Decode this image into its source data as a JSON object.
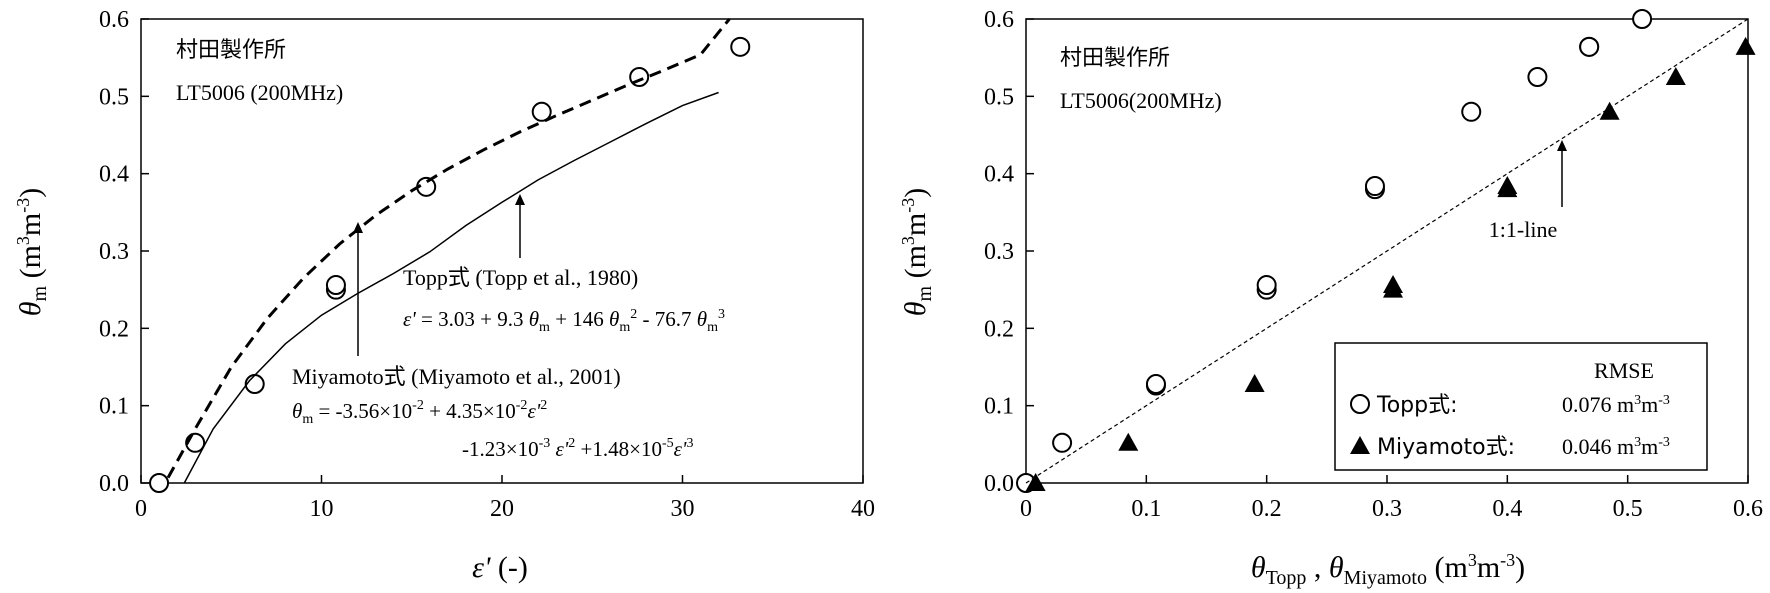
{
  "chart_data": [
    {
      "type": "scatter",
      "xlabel": "ε' (-)",
      "ylabel": "θm (m3m-3)",
      "xlim": [
        0,
        40
      ],
      "ylim": [
        0,
        0.6
      ],
      "xticks": [
        "0",
        "10",
        "20",
        "30",
        "40"
      ],
      "yticks": [
        "0.0",
        "0.1",
        "0.2",
        "0.3",
        "0.4",
        "0.5",
        "0.6"
      ],
      "series": [
        {
          "style": "open-circle",
          "x": [
            1.0,
            3.0,
            6.3,
            10.8,
            10.8,
            15.8,
            22.2,
            27.6,
            33.2
          ],
          "y": [
            0.0,
            0.052,
            0.128,
            0.25,
            0.256,
            0.383,
            0.48,
            0.525,
            0.564
          ]
        },
        {
          "name": "Topp式",
          "style": "solid-line",
          "x": [
            2.4,
            4,
            6,
            8,
            10,
            12,
            14,
            16,
            18,
            20,
            22,
            24,
            26,
            28,
            30,
            32
          ],
          "y": [
            0.0,
            0.07,
            0.132,
            0.18,
            0.217,
            0.245,
            0.271,
            0.299,
            0.333,
            0.363,
            0.392,
            0.417,
            0.441,
            0.465,
            0.488,
            0.505
          ]
        },
        {
          "name": "Miyamoto式",
          "style": "dashed-line",
          "x": [
            1.5,
            3,
            5,
            7,
            9,
            11,
            13,
            15,
            17,
            19,
            21,
            23,
            25,
            27,
            29,
            31,
            32.6
          ],
          "y": [
            0.007,
            0.07,
            0.15,
            0.213,
            0.265,
            0.309,
            0.346,
            0.378,
            0.406,
            0.431,
            0.454,
            0.475,
            0.495,
            0.515,
            0.534,
            0.554,
            0.6
          ]
        }
      ],
      "annotations": {
        "maker": "村田製作所",
        "model": "LT5006 (200MHz)",
        "topp_label": "Topp式 (Topp et al., 1980)",
        "topp_eq": "ε' = 3.03 + 9.3 θm + 146 θm2 - 76.7 θm3",
        "miyamoto_label": "Miyamoto式 (Miyamoto et al., 2001)",
        "miyamoto_eq1": "θm = -3.56×10-2 + 4.35×10-2ε'2",
        "miyamoto_eq2": "-1.23×10-3 ε'2 +1.48×10-5ε'3"
      }
    },
    {
      "type": "scatter",
      "xlabel": "θTopp , θMiyamoto (m3m-3)",
      "ylabel": "θm (m3m-3)",
      "xlim": [
        0,
        0.6
      ],
      "ylim": [
        0,
        0.6
      ],
      "xticks": [
        "0",
        "0.1",
        "0.2",
        "0.3",
        "0.4",
        "0.5",
        "0.6"
      ],
      "yticks": [
        "0.0",
        "0.1",
        "0.2",
        "0.3",
        "0.4",
        "0.5",
        "0.6"
      ],
      "series": [
        {
          "name": "Topp式",
          "style": "open-circle",
          "x": [
            0.0,
            0.03,
            0.108,
            0.108,
            0.2,
            0.2,
            0.29,
            0.29,
            0.37,
            0.425,
            0.468,
            0.468,
            0.512
          ],
          "y": [
            0.0,
            0.052,
            0.126,
            0.128,
            0.25,
            0.256,
            0.38,
            0.384,
            0.48,
            0.525,
            0.564,
            0.564,
            0.6
          ]
        },
        {
          "name": "Miyamoto式",
          "style": "filled-triangle",
          "x": [
            0.008,
            0.085,
            0.19,
            0.305,
            0.305,
            0.4,
            0.4,
            0.485,
            0.54,
            0.598
          ],
          "y": [
            0.0,
            0.052,
            0.128,
            0.25,
            0.256,
            0.38,
            0.384,
            0.48,
            0.525,
            0.564
          ]
        },
        {
          "name": "1:1-line",
          "style": "dotted-line",
          "x": [
            0,
            0.6
          ],
          "y": [
            0,
            0.6
          ]
        }
      ],
      "annotations": {
        "maker": "村田製作所",
        "model": "LT5006(200MHz)",
        "oneone_label": "1:1-line",
        "rmse_title": "RMSE",
        "rmse_topp_name": "Topp式:",
        "rmse_topp_value": "0.076 m3m-3",
        "rmse_miyamoto_name": "Miyamoto式:",
        "rmse_miyamoto_value": "0.046 m3m-3"
      }
    }
  ]
}
